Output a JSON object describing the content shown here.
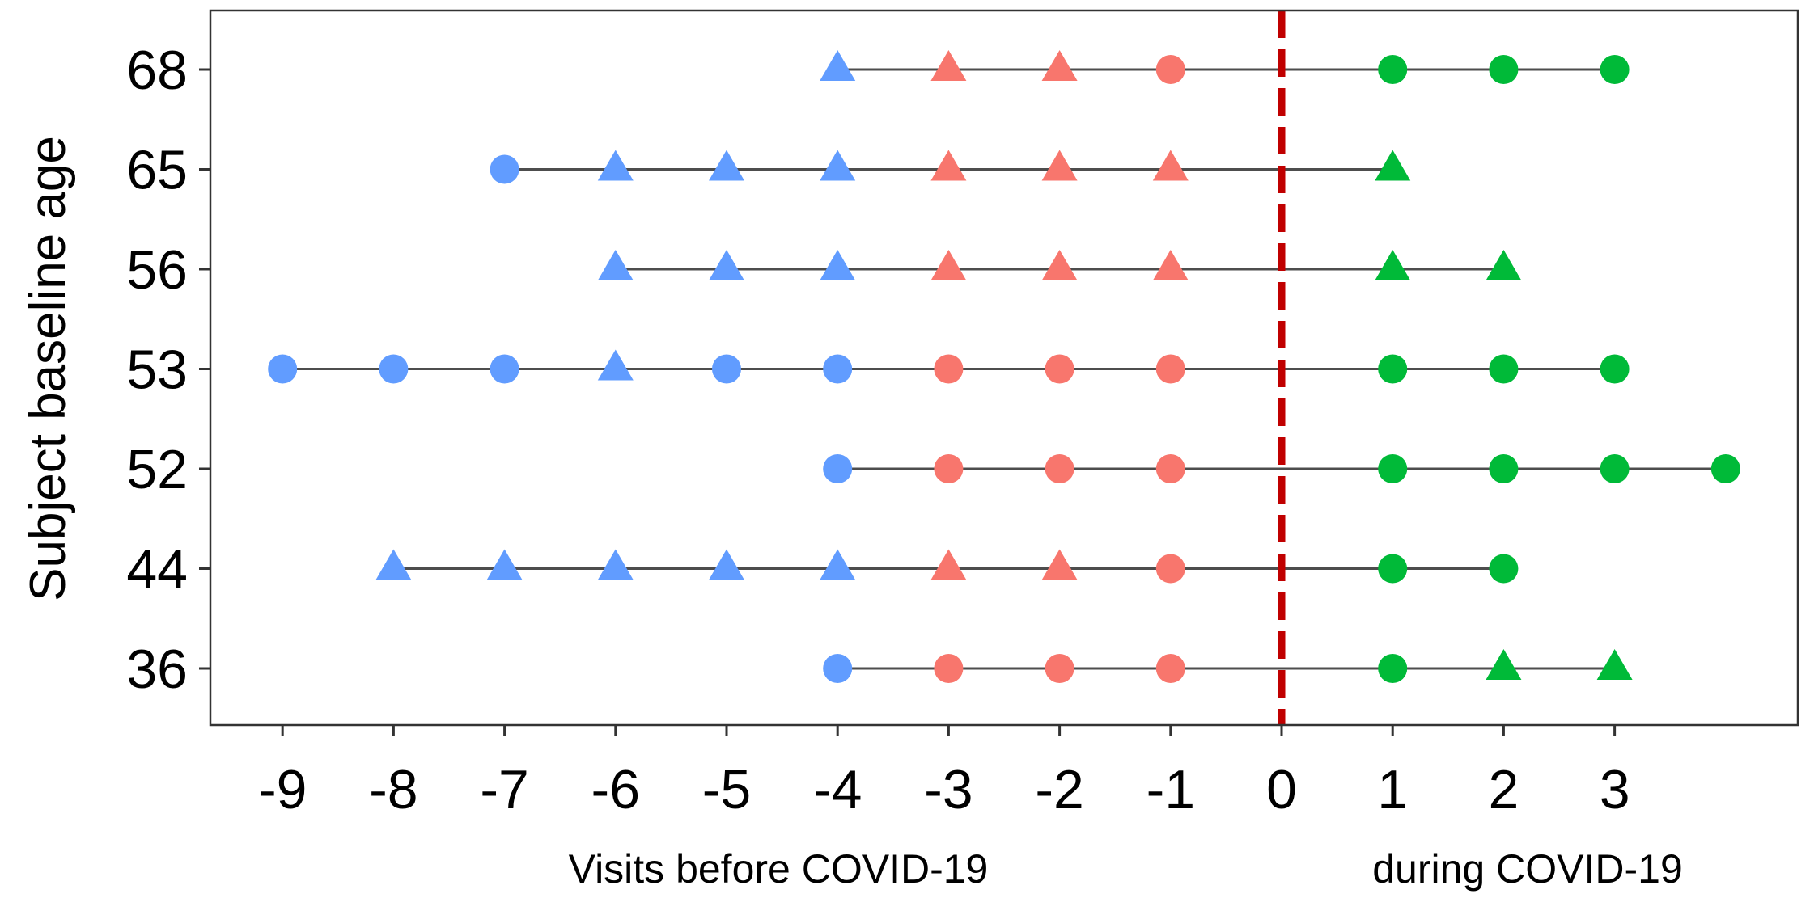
{
  "chart_data": {
    "type": "scatter",
    "ylabel": "Subject baseline age",
    "xlabel_left": "Visits before COVID-19",
    "xlabel_right": "during COVID-19",
    "x_ticks": [
      -9,
      -8,
      -7,
      -6,
      -5,
      -4,
      -3,
      -2,
      -1,
      0,
      1,
      2,
      3
    ],
    "xlim": [
      -9.65,
      4.65
    ],
    "reference_line": {
      "x": 0,
      "style": "dashed",
      "color": "#C00000"
    },
    "grid": false,
    "legend": "none",
    "colors": {
      "before_early": "#619CFF",
      "before_late": "#F8766D",
      "during": "#00BA38",
      "line": "#4D4D4D"
    },
    "subjects": [
      {
        "age": "68",
        "points": [
          {
            "x": -4,
            "shape": "triangle",
            "color": "#619CFF"
          },
          {
            "x": -3,
            "shape": "triangle",
            "color": "#F8766D"
          },
          {
            "x": -2,
            "shape": "triangle",
            "color": "#F8766D"
          },
          {
            "x": -1,
            "shape": "circle",
            "color": "#F8766D"
          },
          {
            "x": 1,
            "shape": "circle",
            "color": "#00BA38"
          },
          {
            "x": 2,
            "shape": "circle",
            "color": "#00BA38"
          },
          {
            "x": 3,
            "shape": "circle",
            "color": "#00BA38"
          }
        ]
      },
      {
        "age": "65",
        "points": [
          {
            "x": -7,
            "shape": "circle",
            "color": "#619CFF"
          },
          {
            "x": -6,
            "shape": "triangle",
            "color": "#619CFF"
          },
          {
            "x": -5,
            "shape": "triangle",
            "color": "#619CFF"
          },
          {
            "x": -4,
            "shape": "triangle",
            "color": "#619CFF"
          },
          {
            "x": -3,
            "shape": "triangle",
            "color": "#F8766D"
          },
          {
            "x": -2,
            "shape": "triangle",
            "color": "#F8766D"
          },
          {
            "x": -1,
            "shape": "triangle",
            "color": "#F8766D"
          },
          {
            "x": 1,
            "shape": "triangle",
            "color": "#00BA38"
          }
        ]
      },
      {
        "age": "56",
        "points": [
          {
            "x": -6,
            "shape": "triangle",
            "color": "#619CFF"
          },
          {
            "x": -5,
            "shape": "triangle",
            "color": "#619CFF"
          },
          {
            "x": -4,
            "shape": "triangle",
            "color": "#619CFF"
          },
          {
            "x": -3,
            "shape": "triangle",
            "color": "#F8766D"
          },
          {
            "x": -2,
            "shape": "triangle",
            "color": "#F8766D"
          },
          {
            "x": -1,
            "shape": "triangle",
            "color": "#F8766D"
          },
          {
            "x": 1,
            "shape": "triangle",
            "color": "#00BA38"
          },
          {
            "x": 2,
            "shape": "triangle",
            "color": "#00BA38"
          }
        ]
      },
      {
        "age": "53",
        "points": [
          {
            "x": -9,
            "shape": "circle",
            "color": "#619CFF"
          },
          {
            "x": -8,
            "shape": "circle",
            "color": "#619CFF"
          },
          {
            "x": -7,
            "shape": "circle",
            "color": "#619CFF"
          },
          {
            "x": -6,
            "shape": "triangle",
            "color": "#619CFF"
          },
          {
            "x": -5,
            "shape": "circle",
            "color": "#619CFF"
          },
          {
            "x": -4,
            "shape": "circle",
            "color": "#619CFF"
          },
          {
            "x": -3,
            "shape": "circle",
            "color": "#F8766D"
          },
          {
            "x": -2,
            "shape": "circle",
            "color": "#F8766D"
          },
          {
            "x": -1,
            "shape": "circle",
            "color": "#F8766D"
          },
          {
            "x": 1,
            "shape": "circle",
            "color": "#00BA38"
          },
          {
            "x": 2,
            "shape": "circle",
            "color": "#00BA38"
          },
          {
            "x": 3,
            "shape": "circle",
            "color": "#00BA38"
          }
        ]
      },
      {
        "age": "52",
        "points": [
          {
            "x": -4,
            "shape": "circle",
            "color": "#619CFF"
          },
          {
            "x": -3,
            "shape": "circle",
            "color": "#F8766D"
          },
          {
            "x": -2,
            "shape": "circle",
            "color": "#F8766D"
          },
          {
            "x": -1,
            "shape": "circle",
            "color": "#F8766D"
          },
          {
            "x": 1,
            "shape": "circle",
            "color": "#00BA38"
          },
          {
            "x": 2,
            "shape": "circle",
            "color": "#00BA38"
          },
          {
            "x": 3,
            "shape": "circle",
            "color": "#00BA38"
          },
          {
            "x": 4,
            "shape": "circle",
            "color": "#00BA38"
          }
        ]
      },
      {
        "age": "44",
        "points": [
          {
            "x": -8,
            "shape": "triangle",
            "color": "#619CFF"
          },
          {
            "x": -7,
            "shape": "triangle",
            "color": "#619CFF"
          },
          {
            "x": -6,
            "shape": "triangle",
            "color": "#619CFF"
          },
          {
            "x": -5,
            "shape": "triangle",
            "color": "#619CFF"
          },
          {
            "x": -4,
            "shape": "triangle",
            "color": "#619CFF"
          },
          {
            "x": -3,
            "shape": "triangle",
            "color": "#F8766D"
          },
          {
            "x": -2,
            "shape": "triangle",
            "color": "#F8766D"
          },
          {
            "x": -1,
            "shape": "circle",
            "color": "#F8766D"
          },
          {
            "x": 1,
            "shape": "circle",
            "color": "#00BA38"
          },
          {
            "x": 2,
            "shape": "circle",
            "color": "#00BA38"
          }
        ]
      },
      {
        "age": "36",
        "points": [
          {
            "x": -4,
            "shape": "circle",
            "color": "#619CFF"
          },
          {
            "x": -3,
            "shape": "circle",
            "color": "#F8766D"
          },
          {
            "x": -2,
            "shape": "circle",
            "color": "#F8766D"
          },
          {
            "x": -1,
            "shape": "circle",
            "color": "#F8766D"
          },
          {
            "x": 1,
            "shape": "circle",
            "color": "#00BA38"
          },
          {
            "x": 2,
            "shape": "triangle",
            "color": "#00BA38"
          },
          {
            "x": 3,
            "shape": "triangle",
            "color": "#00BA38"
          }
        ]
      }
    ]
  }
}
